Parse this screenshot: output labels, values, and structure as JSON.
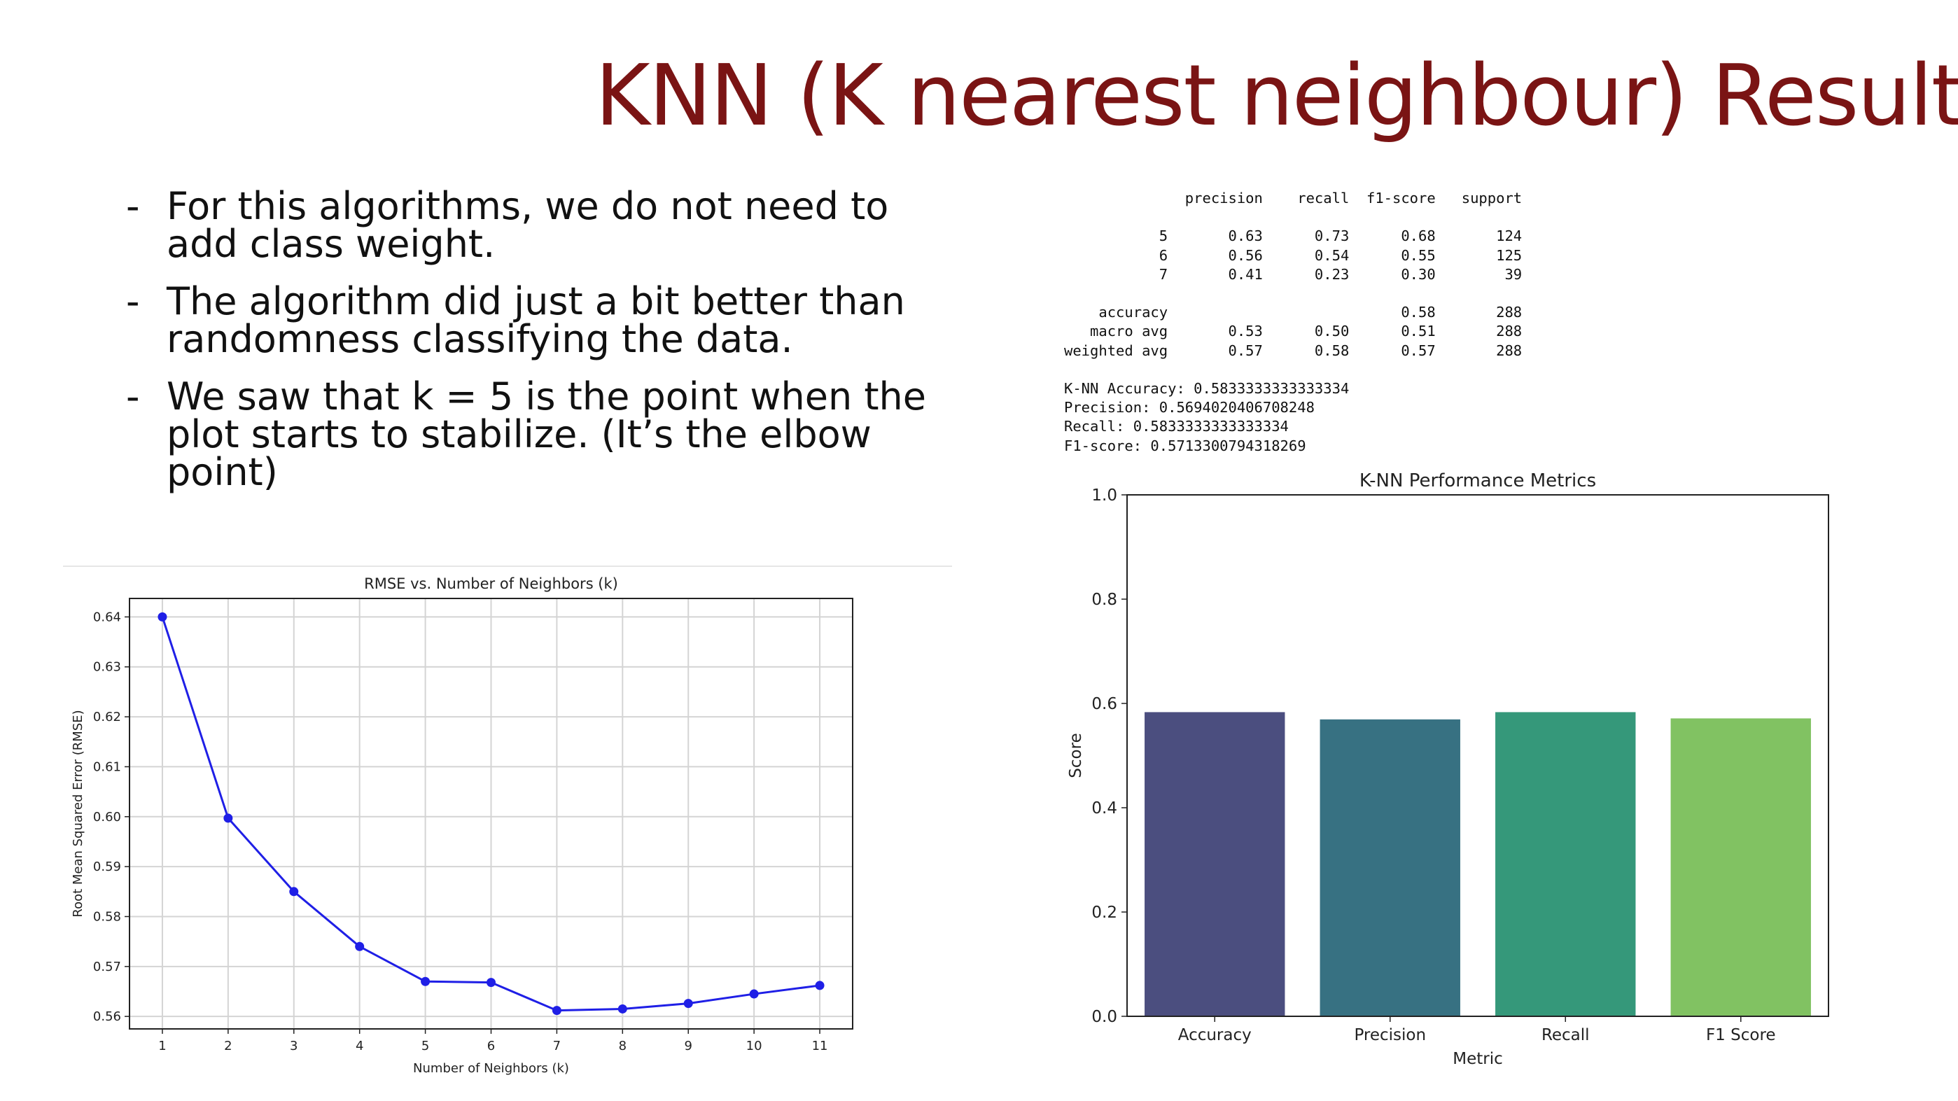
{
  "slide": {
    "title": "KNN (K nearest neighbour) Results",
    "bullets": [
      "For this algorithms, we do not need to add class weight.",
      "The algorithm did just a bit better than randomness classifying the data.",
      "We saw that k = 5 is the point when the plot starts to stabilize. (It’s the elbow point)"
    ],
    "bullet_marker": "-"
  },
  "report": {
    "header": [
      "precision",
      "recall",
      "f1-score",
      "support"
    ],
    "rows": [
      [
        "5",
        "0.63",
        "0.73",
        "0.68",
        "124"
      ],
      [
        "6",
        "0.56",
        "0.54",
        "0.55",
        "125"
      ],
      [
        "7",
        "0.41",
        "0.23",
        "0.30",
        "39"
      ]
    ],
    "summary": [
      [
        "accuracy",
        "",
        "",
        "0.58",
        "288"
      ],
      [
        "macro avg",
        "0.53",
        "0.50",
        "0.51",
        "288"
      ],
      [
        "weighted avg",
        "0.57",
        "0.58",
        "0.57",
        "288"
      ]
    ],
    "metrics": [
      "K-NN Accuracy: 0.5833333333333334",
      "Precision: 0.5694020406708248",
      "Recall: 0.5833333333333334",
      "F1-score: 0.5713300794318269"
    ]
  },
  "chart_data": [
    {
      "type": "line",
      "title": "RMSE vs. Number of Neighbors (k)",
      "xlabel": "Number of Neighbors (k)",
      "ylabel": "Root Mean Squared Error (RMSE)",
      "x": [
        1,
        2,
        3,
        4,
        5,
        6,
        7,
        8,
        9,
        10,
        11
      ],
      "series": [
        {
          "values": [
            0.64,
            0.5997,
            0.585,
            0.574,
            0.567,
            0.5668,
            0.5612,
            0.5615,
            0.5626,
            0.5645,
            0.5662
          ],
          "color": "#1f1fe6"
        }
      ],
      "xticks": [
        "1",
        "2",
        "3",
        "4",
        "5",
        "6",
        "7",
        "8",
        "9",
        "10",
        "11"
      ],
      "yticks": [
        "0.56",
        "0.57",
        "0.58",
        "0.59",
        "0.60",
        "0.61",
        "0.62",
        "0.63",
        "0.64"
      ],
      "xlim": [
        0.5,
        11.5
      ],
      "ylim": [
        0.5575,
        0.6437
      ],
      "grid": true,
      "marker": "circle"
    },
    {
      "type": "bar",
      "title": "K-NN Performance Metrics",
      "xlabel": "Metric",
      "ylabel": "Score",
      "categories": [
        "Accuracy",
        "Precision",
        "Recall",
        "F1 Score"
      ],
      "values": [
        0.5833,
        0.5694,
        0.5833,
        0.5713
      ],
      "colors": [
        "#4b4e7f",
        "#377182",
        "#35987a",
        "#81c262"
      ],
      "yticks": [
        "0.0",
        "0.2",
        "0.4",
        "0.6",
        "0.8",
        "1.0"
      ],
      "ylim": [
        0,
        1.0
      ],
      "grid": false
    }
  ]
}
